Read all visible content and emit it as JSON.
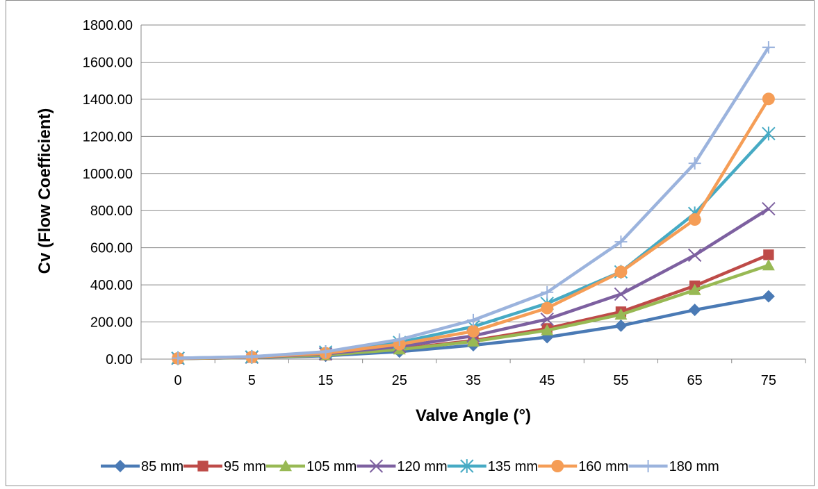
{
  "chart_data": {
    "type": "line",
    "title": "",
    "xlabel": "Valve Angle (°)",
    "ylabel": "Cv (Flow Coefficient)",
    "categories": [
      "0",
      "5",
      "15",
      "25",
      "35",
      "45",
      "55",
      "65",
      "75"
    ],
    "ylim": [
      0,
      1800
    ],
    "yticks": [
      "0.00",
      "200.00",
      "400.00",
      "600.00",
      "800.00",
      "1000.00",
      "1200.00",
      "1400.00",
      "1600.00",
      "1800.00"
    ],
    "grid": "horizontal",
    "legend": "bottom",
    "series": [
      {
        "name": "85 mm",
        "color": "#4a7ab5",
        "marker": "diamond",
        "values": [
          3,
          8,
          18,
          40,
          75,
          118,
          180,
          265,
          338
        ]
      },
      {
        "name": "95 mm",
        "color": "#be4b48",
        "marker": "square",
        "values": [
          3,
          9,
          22,
          55,
          100,
          165,
          255,
          395,
          562
        ]
      },
      {
        "name": "105 mm",
        "color": "#98b954",
        "marker": "triangle",
        "values": [
          3,
          9,
          22,
          52,
          95,
          155,
          240,
          372,
          505
        ]
      },
      {
        "name": "120 mm",
        "color": "#7d60a0",
        "marker": "x",
        "values": [
          4,
          10,
          28,
          68,
          125,
          215,
          350,
          560,
          810
        ]
      },
      {
        "name": "135 mm",
        "color": "#46aac4",
        "marker": "star",
        "values": [
          5,
          12,
          38,
          90,
          175,
          300,
          470,
          785,
          1215
        ]
      },
      {
        "name": "160 mm",
        "color": "#f59d56",
        "marker": "circle",
        "values": [
          4,
          11,
          32,
          80,
          150,
          275,
          470,
          752,
          1402
        ]
      },
      {
        "name": "180 mm",
        "color": "#9bb3dd",
        "marker": "plus",
        "values": [
          5,
          13,
          40,
          105,
          210,
          360,
          632,
          1055,
          1680
        ]
      }
    ]
  }
}
